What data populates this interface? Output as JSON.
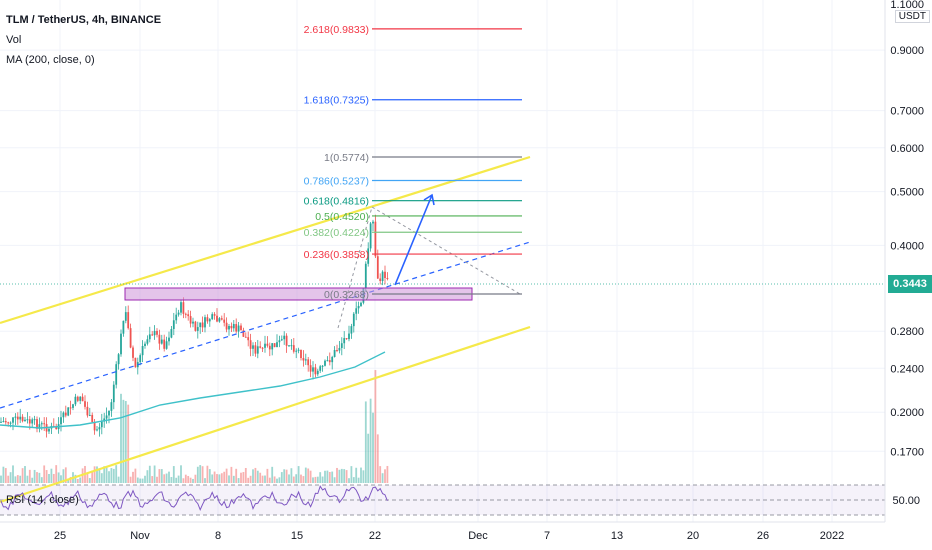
{
  "legend": {
    "symbol": "TLM / TetherUS, 4h, BINANCE",
    "vol": "Vol",
    "ma": "MA (200, close, 0)",
    "rsi": "RSI (14, close)"
  },
  "axis": {
    "currency": "USDT",
    "top_label": "1.1000",
    "price_ticks": [
      "0.9000",
      "0.7000",
      "0.6000",
      "0.5000",
      "0.4000",
      "0.2800",
      "0.2400",
      "0.2000",
      "0.1700"
    ],
    "rsi_tick": "50.00",
    "time_ticks": [
      "25",
      "Nov",
      "8",
      "15",
      "22",
      "Dec",
      "7",
      "13",
      "20",
      "26",
      "2022"
    ]
  },
  "current_price": "0.3443",
  "colors": {
    "up": "#26a69a",
    "down": "#ef5350",
    "channel": "#f5e94a",
    "ma": "#3fc1c9",
    "arrow": "#2962ff",
    "zone": "#9c27b0",
    "rsi": "#7e57c2",
    "price_tag": "#22ab94"
  },
  "chart_data": {
    "type": "candlestick",
    "symbol": "TLM/USDT",
    "interval": "4h",
    "scale": "log",
    "fib_levels": [
      {
        "label": "2.618(0.9833)",
        "ratio": 2.618,
        "price": 0.9833,
        "color": "#f23645"
      },
      {
        "label": "1.618(0.7325)",
        "ratio": 1.618,
        "price": 0.7325,
        "color": "#2962ff"
      },
      {
        "label": "1(0.5774)",
        "ratio": 1,
        "price": 0.5774,
        "color": "#787b86"
      },
      {
        "label": "0.786(0.5237)",
        "ratio": 0.786,
        "price": 0.5237,
        "color": "#42a5f5"
      },
      {
        "label": "0.618(0.4816)",
        "ratio": 0.618,
        "price": 0.4816,
        "color": "#089981"
      },
      {
        "label": "0.5(0.4520)",
        "ratio": 0.5,
        "price": 0.452,
        "color": "#4caf50"
      },
      {
        "label": "0.382(0.4224)",
        "ratio": 0.382,
        "price": 0.4224,
        "color": "#81c784"
      },
      {
        "label": "0.236(0.3858)",
        "ratio": 0.236,
        "price": 0.3858,
        "color": "#f23645"
      },
      {
        "label": "0(0.3268)",
        "ratio": 0,
        "price": 0.3268,
        "color": "#787b86"
      }
    ],
    "series": [
      {
        "name": "Vol"
      },
      {
        "name": "MA (200, close, 0)"
      },
      {
        "name": "RSI (14, close)"
      }
    ],
    "last_price": 0.3443
  }
}
